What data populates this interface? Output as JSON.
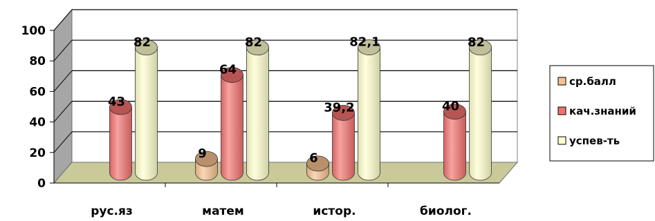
{
  "chart_data": {
    "type": "bar",
    "style": "3d-cylinder",
    "title": "",
    "xlabel": "",
    "ylabel": "",
    "ylim": [
      0,
      100
    ],
    "yticks": [
      "0",
      "20",
      "40",
      "60",
      "80",
      "100"
    ],
    "grid": true,
    "legend_position": "right",
    "categories": [
      "рус.яз",
      "матем",
      "истор.",
      "биолог."
    ],
    "series": [
      {
        "name": "ср.балл",
        "color": "#f6c08f",
        "values": [
          null,
          9,
          6,
          null
        ],
        "labels": [
          "",
          "9",
          "6",
          ""
        ]
      },
      {
        "name": "кач.знаний",
        "color": "#f2716f",
        "values": [
          43,
          64,
          39.2,
          40
        ],
        "labels": [
          "43",
          "64",
          "39,2",
          "40"
        ]
      },
      {
        "name": "успев-ть",
        "color": "#ffffcc",
        "values": [
          82,
          82,
          82.1,
          82
        ],
        "labels": [
          "82",
          "82",
          "82,1",
          "82"
        ]
      }
    ]
  }
}
